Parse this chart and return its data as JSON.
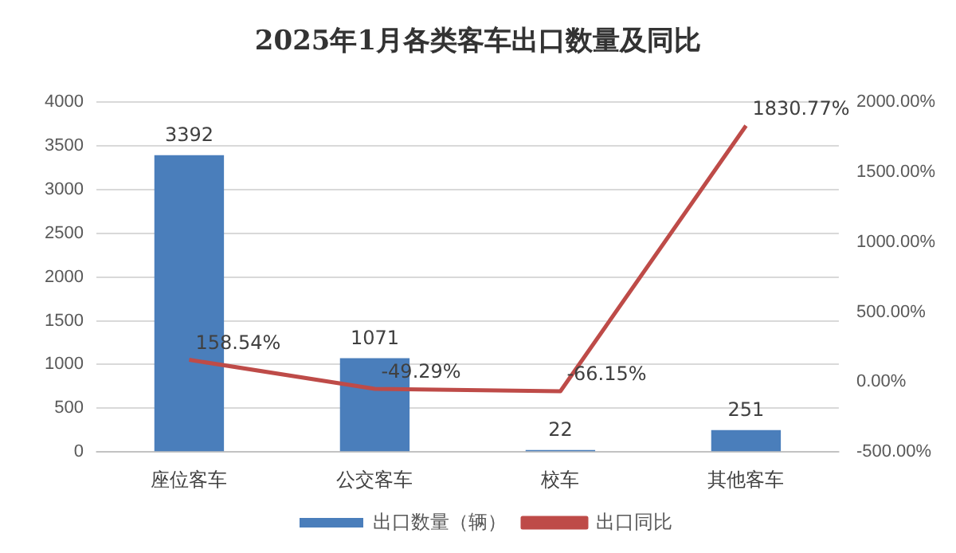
{
  "chart_data": {
    "type": "bar",
    "title": "2025年1月各类客车出口数量及同比",
    "categories": [
      "座位客车",
      "公交客车",
      "校车",
      "其他客车"
    ],
    "series": [
      {
        "name": "出口数量（辆）",
        "color": "#4a7ebb",
        "values": [
          3392,
          1071,
          22,
          251
        ],
        "value_labels": [
          "3392",
          "1071",
          "22",
          "251"
        ]
      },
      {
        "name": "出口同比",
        "type": "line",
        "axis": "y2",
        "color": "#be4b48",
        "values": [
          158.54,
          -49.29,
          -66.15,
          1830.77
        ],
        "value_labels": [
          "158.54%",
          "-49.29%",
          "-66.15%",
          "1830.77%"
        ]
      }
    ],
    "ylim": [
      0,
      4000
    ],
    "yticks": [
      0,
      500,
      1000,
      1500,
      2000,
      2500,
      3000,
      3500,
      4000
    ],
    "y2lim": [
      -500,
      2000
    ],
    "y2ticks": [
      {
        "value": -500,
        "label": "-500.00%"
      },
      {
        "value": 0,
        "label": "0.00%"
      },
      {
        "value": 500,
        "label": "500.00%"
      },
      {
        "value": 1000,
        "label": "1000.00%"
      },
      {
        "value": 1500,
        "label": "1500.00%"
      },
      {
        "value": 2000,
        "label": "2000.00%"
      }
    ],
    "grid": "y",
    "legend": "bottom",
    "marker": "none"
  }
}
